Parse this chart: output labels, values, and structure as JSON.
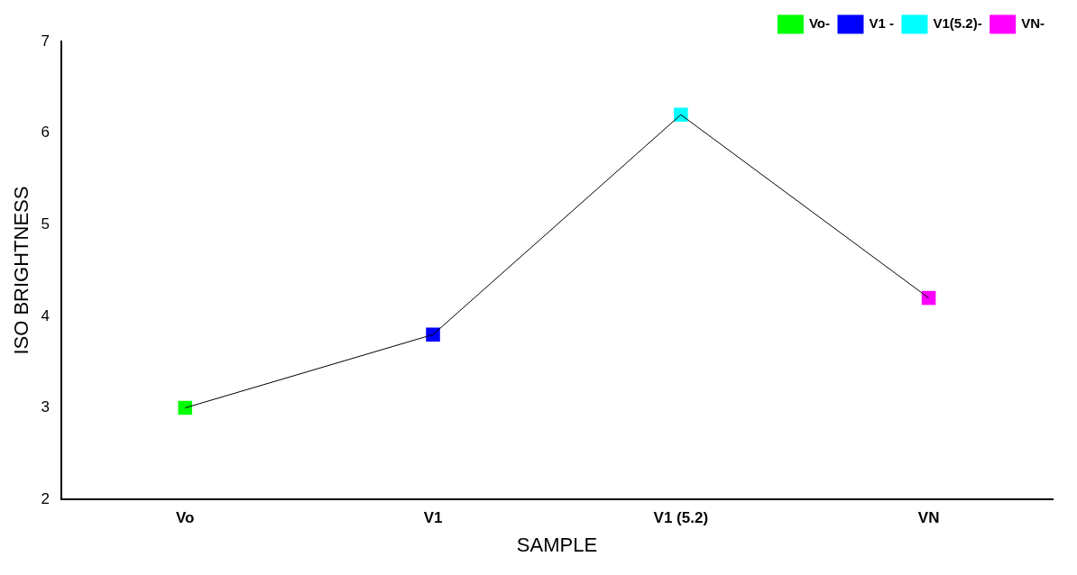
{
  "chart_data": {
    "type": "line",
    "xlabel": "SAMPLE",
    "ylabel": "ISO BRIGHTNESS",
    "categories": [
      "Vo",
      "V1",
      "V1 (5.2)",
      "VN"
    ],
    "series": [
      {
        "color": "#000000",
        "values": [
          3.0,
          3.8,
          6.2,
          4.2
        ],
        "marker": "none"
      },
      {
        "type": "scatter",
        "name": "Vo-",
        "color": "#00ff00",
        "values": [
          3.0,
          null,
          null,
          null
        ],
        "marker": "square"
      },
      {
        "type": "scatter",
        "name": "V1 -",
        "color": "#0000ff",
        "values": [
          null,
          3.8,
          null,
          null
        ],
        "marker": "square"
      },
      {
        "type": "scatter",
        "name": "V1(5.2)-",
        "color": "#00ffff",
        "values": [
          null,
          null,
          6.2,
          null
        ],
        "marker": "square"
      },
      {
        "type": "scatter",
        "name": "VN-",
        "color": "#ff00ff",
        "values": [
          null,
          null,
          null,
          4.2
        ],
        "marker": "square"
      }
    ],
    "ylim": [
      2,
      7
    ],
    "yticks": [
      2,
      3,
      4,
      5,
      6,
      7
    ],
    "grid": false,
    "legend": "top right"
  }
}
